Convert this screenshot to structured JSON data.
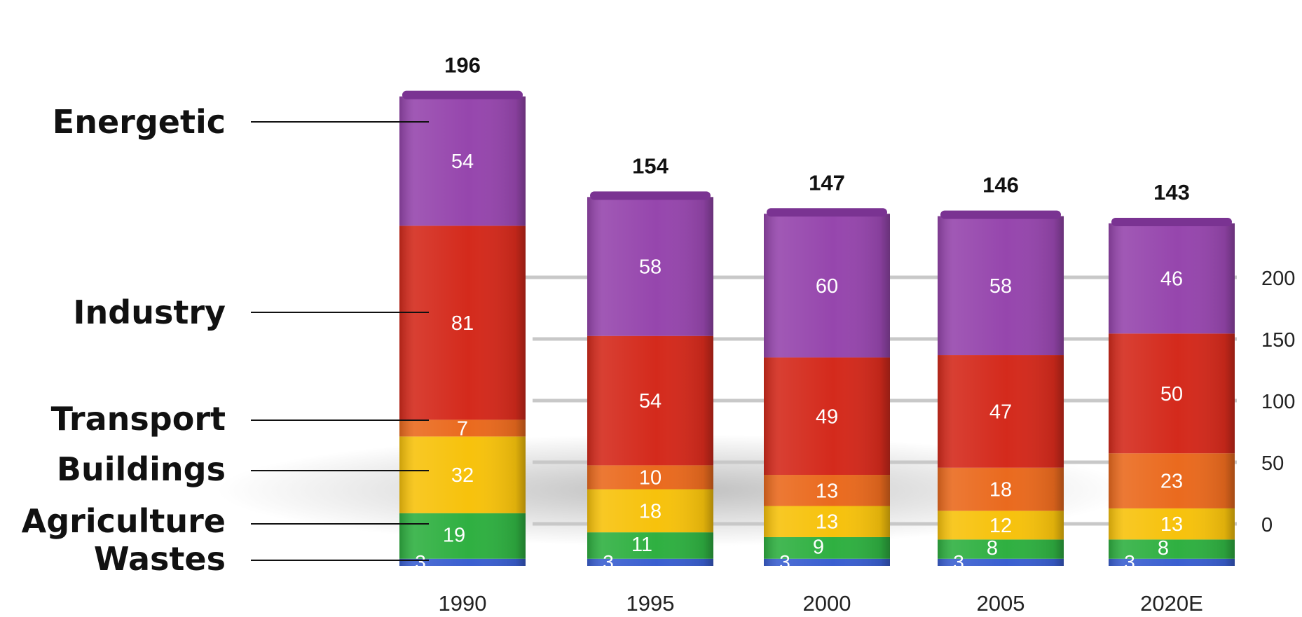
{
  "chart_data": {
    "type": "bar",
    "stacked": true,
    "categories": [
      "1990",
      "1995",
      "2000",
      "2005",
      "2020E"
    ],
    "series": [
      {
        "name": "Wastes",
        "color": "#3a5fd0",
        "values": [
          3,
          3,
          3,
          3,
          3
        ]
      },
      {
        "name": "Agriculture",
        "color": "#2fb041",
        "values": [
          19,
          11,
          9,
          8,
          8
        ]
      },
      {
        "name": "Buildings",
        "color": "#f7c20c",
        "values": [
          32,
          18,
          13,
          12,
          13
        ]
      },
      {
        "name": "Transport",
        "color": "#ea6a1e",
        "values": [
          7,
          10,
          13,
          18,
          23
        ]
      },
      {
        "name": "Industry",
        "color": "#d42a1c",
        "values": [
          81,
          54,
          49,
          47,
          50
        ]
      },
      {
        "name": "Energetic",
        "color": "#9646ad",
        "values": [
          54,
          58,
          60,
          58,
          46
        ]
      }
    ],
    "totals": [
      "196",
      "154",
      "147",
      "146",
      "143"
    ],
    "yticks": [
      "0",
      "50",
      "100",
      "150",
      "200"
    ],
    "ylim": [
      0,
      200
    ],
    "grid": true,
    "legend_position": "left"
  }
}
